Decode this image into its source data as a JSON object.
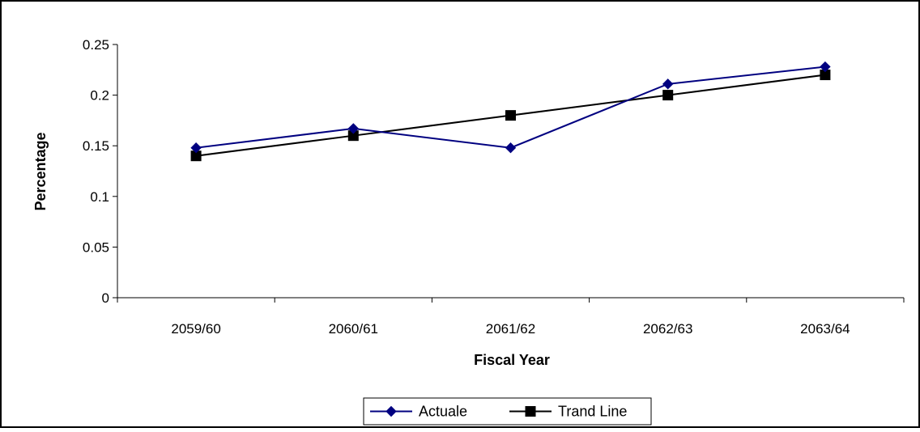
{
  "chart_data": {
    "type": "line",
    "title": "",
    "xlabel": "Fiscal Year",
    "ylabel": "Percentage",
    "categories": [
      "2059/60",
      "2060/61",
      "2061/62",
      "2062/63",
      "2063/64"
    ],
    "ylim": [
      0,
      0.25
    ],
    "yticks": [
      0,
      0.05,
      0.1,
      0.15,
      0.2,
      0.25
    ],
    "ytick_labels": [
      "0",
      "0.05",
      "0.1",
      "0.15",
      "0.2",
      "0.25"
    ],
    "grid": false,
    "legend_position": "bottom",
    "series": [
      {
        "name": "Actuale",
        "color": "#000080",
        "marker": "diamond",
        "values": [
          0.148,
          0.167,
          0.148,
          0.211,
          0.228
        ]
      },
      {
        "name": "Trand Line",
        "color": "#000000",
        "marker": "square",
        "values": [
          0.14,
          0.16,
          0.18,
          0.2,
          0.22
        ]
      }
    ]
  }
}
